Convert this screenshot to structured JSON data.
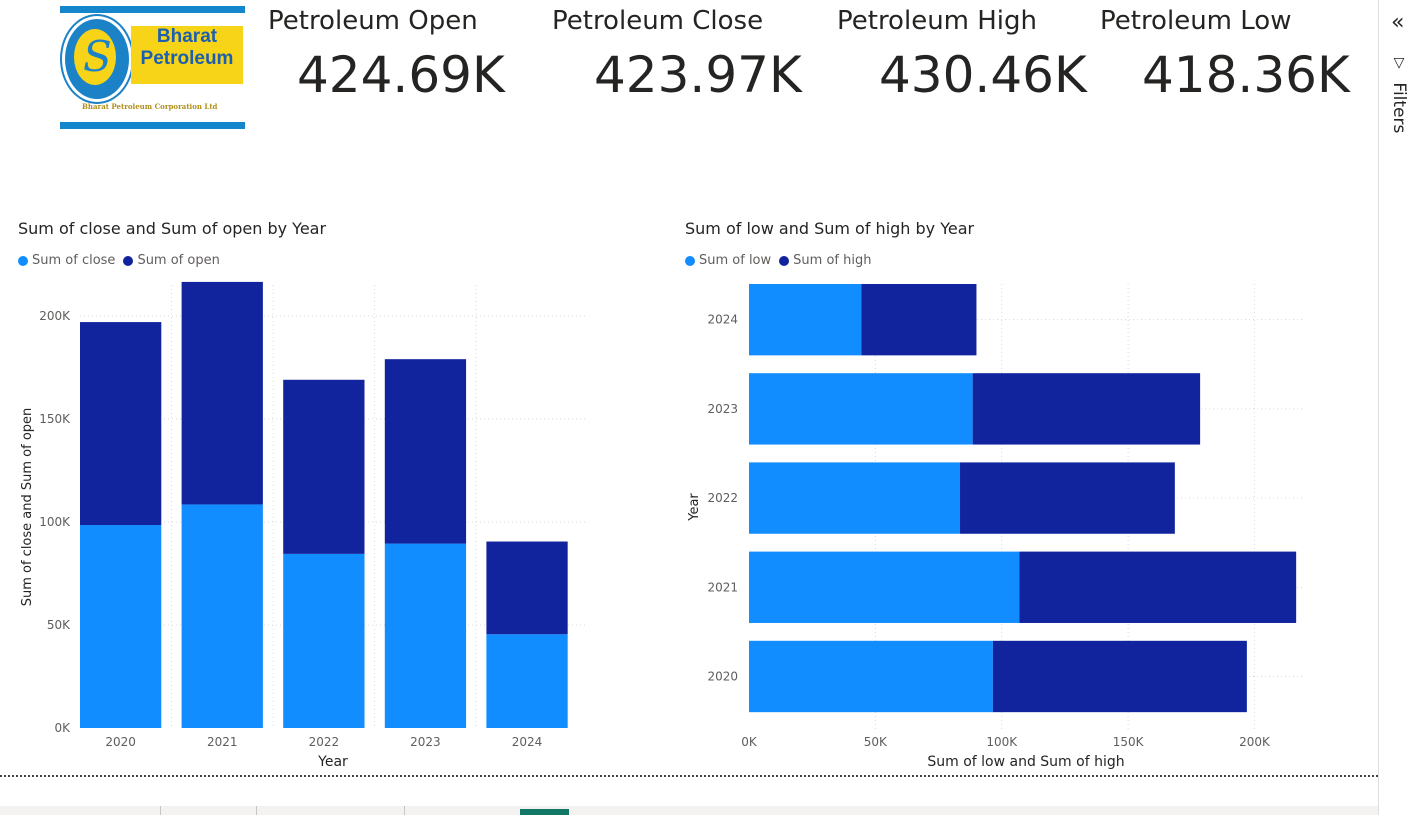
{
  "logo": {
    "line1": "Bharat",
    "line2": "Petroleum",
    "tagline": "Bharat Petroleum Corporation Ltd"
  },
  "kpis": [
    {
      "label": "Petroleum Open",
      "value": "424.69K"
    },
    {
      "label": "Petroleum Close",
      "value": "423.97K"
    },
    {
      "label": "Petroleum High",
      "value": "430.46K"
    },
    {
      "label": "Petroleum Low",
      "value": "418.36K"
    }
  ],
  "colors": {
    "light_blue": "#118DFF",
    "dark_blue": "#12239E",
    "gridline": "#e1dfdd",
    "tab_active": "#117865"
  },
  "filters_pane": {
    "label": "Filters",
    "collapse_icon": "double-chevron-left-icon",
    "funnel_icon": "funnel-icon"
  },
  "chart_data": [
    {
      "type": "bar",
      "orientation": "vertical",
      "stacked": true,
      "title": "Sum of close and Sum of open by Year",
      "xlabel": "Year",
      "ylabel": "Sum of close and Sum of open",
      "categories": [
        "2020",
        "2021",
        "2022",
        "2023",
        "2024"
      ],
      "series": [
        {
          "name": "Sum of close",
          "color": "#118DFF",
          "values": [
            98500,
            108500,
            84500,
            89500,
            45500
          ]
        },
        {
          "name": "Sum of open",
          "color": "#12239E",
          "values": [
            98500,
            108000,
            84500,
            89500,
            45000
          ]
        }
      ],
      "ylim": [
        0,
        215000
      ],
      "yticks": [
        0,
        50000,
        100000,
        150000,
        200000
      ],
      "ytick_labels": [
        "0K",
        "50K",
        "100K",
        "150K",
        "200K"
      ],
      "legend": "top-left",
      "grid": true
    },
    {
      "type": "bar",
      "orientation": "horizontal",
      "stacked": true,
      "title": "Sum of low and Sum of high by Year",
      "xlabel": "Sum of low and Sum of high",
      "ylabel": "Year",
      "categories": [
        "2024",
        "2023",
        "2022",
        "2021",
        "2020"
      ],
      "series": [
        {
          "name": "Sum of low",
          "color": "#118DFF",
          "values": [
            44500,
            88500,
            83500,
            107000,
            96500
          ]
        },
        {
          "name": "Sum of high",
          "color": "#12239E",
          "values": [
            45500,
            90000,
            85000,
            109500,
            100500
          ]
        }
      ],
      "xlim": [
        0,
        220000
      ],
      "xticks": [
        0,
        50000,
        100000,
        150000,
        200000
      ],
      "xtick_labels": [
        "0K",
        "50K",
        "100K",
        "150K",
        "200K"
      ],
      "legend": "top-left",
      "grid": true
    }
  ]
}
